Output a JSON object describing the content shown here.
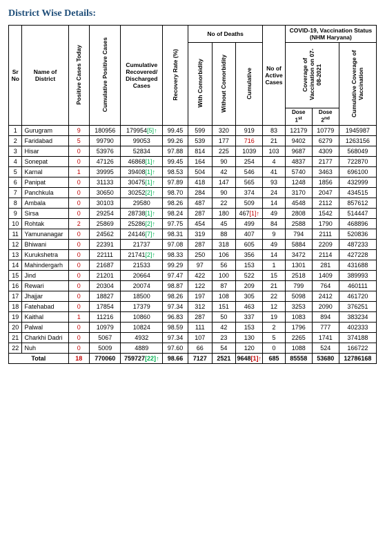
{
  "title": "District Wise Details:",
  "headers": {
    "sr": "Sr No",
    "district": "Name of District",
    "posToday": "Positive Cases Today",
    "cumPos": "Cumulative Positive Cases",
    "cumRec": "Cumulative Recovered/ Discharged Cases",
    "recRate": "Recovery Rate (%)",
    "deathsGroup": "No of Deaths",
    "withCom": "With Comorbidity",
    "withoutCom": "Without Comorbidity",
    "cumDeaths": "Cumulative",
    "active": "No of Active Cases",
    "vaccGroup": "COVID-19, Vaccination Status (NHM Haryana)",
    "coverage": "Coverage of Vaccination on 07-08-2021",
    "cumCoverage": "Cumulative Coverage of Vaccination",
    "dose1": "Dose 1st",
    "dose2": "Dose 2nd"
  },
  "rows": [
    {
      "sr": "1",
      "district": "Gurugram",
      "posToday": "9",
      "cumPos": "180956",
      "cumRec": "179954",
      "recSuffix": "[5]",
      "recRate": "99.45",
      "withCom": "599",
      "withoutCom": "320",
      "cumDeaths": "919",
      "active": "83",
      "dose1": "12179",
      "dose2": "10779",
      "cumVacc": "1945987"
    },
    {
      "sr": "2",
      "district": "Faridabad",
      "posToday": "5",
      "cumPos": "99790",
      "cumRec": "99053",
      "recRate": "99.26",
      "withCom": "539",
      "withoutCom": "177",
      "cumDeaths": "716",
      "deathRed": true,
      "active": "21",
      "dose1": "9402",
      "dose2": "6279",
      "cumVacc": "1263156"
    },
    {
      "sr": "3",
      "district": "Hisar",
      "posToday": "0",
      "cumPos": "53976",
      "cumRec": "52834",
      "recRate": "97.88",
      "withCom": "814",
      "withoutCom": "225",
      "cumDeaths": "1039",
      "active": "103",
      "dose1": "9687",
      "dose2": "4309",
      "cumVacc": "568049"
    },
    {
      "sr": "4",
      "district": "Sonepat",
      "posToday": "0",
      "cumPos": "47126",
      "cumRec": "46868",
      "recSuffix": "[1]",
      "recRate": "99.45",
      "withCom": "164",
      "withoutCom": "90",
      "cumDeaths": "254",
      "active": "4",
      "dose1": "4837",
      "dose2": "2177",
      "cumVacc": "722870"
    },
    {
      "sr": "5",
      "district": "Karnal",
      "posToday": "1",
      "cumPos": "39995",
      "cumRec": "39408",
      "recSuffix": "[1]",
      "recRate": "98.53",
      "withCom": "504",
      "withoutCom": "42",
      "cumDeaths": "546",
      "active": "41",
      "dose1": "5740",
      "dose2": "3463",
      "cumVacc": "696100"
    },
    {
      "sr": "6",
      "district": "Panipat",
      "posToday": "0",
      "cumPos": "31133",
      "cumRec": "30475",
      "recSuffix": "[1]",
      "recRate": "97.89",
      "withCom": "418",
      "withoutCom": "147",
      "cumDeaths": "565",
      "active": "93",
      "dose1": "1248",
      "dose2": "1856",
      "cumVacc": "432999"
    },
    {
      "sr": "7",
      "district": "Panchkula",
      "posToday": "0",
      "cumPos": "30650",
      "cumRec": "30252",
      "recSuffix": "[2]",
      "recRate": "98.70",
      "withCom": "284",
      "withoutCom": "90",
      "cumDeaths": "374",
      "active": "24",
      "dose1": "3170",
      "dose2": "2047",
      "cumVacc": "434515"
    },
    {
      "sr": "8",
      "district": "Ambala",
      "posToday": "0",
      "cumPos": "30103",
      "cumRec": "29580",
      "recRate": "98.26",
      "withCom": "487",
      "withoutCom": "22",
      "cumDeaths": "509",
      "active": "14",
      "dose1": "4548",
      "dose2": "2112",
      "cumVacc": "857612"
    },
    {
      "sr": "9",
      "district": "Sirsa",
      "posToday": "0",
      "cumPos": "29254",
      "cumRec": "28738",
      "recSuffix": "[1]",
      "recRate": "98.24",
      "withCom": "287",
      "withoutCom": "180",
      "cumDeaths": "467",
      "deathSuffix": "[1]",
      "deathArrowRed": true,
      "active": "49",
      "dose1": "2808",
      "dose2": "1542",
      "cumVacc": "514447"
    },
    {
      "sr": "10",
      "district": "Rohtak",
      "posToday": "2",
      "cumPos": "25869",
      "cumRec": "25286",
      "recSuffix": "[2]",
      "recRate": "97.75",
      "withCom": "454",
      "withoutCom": "45",
      "cumDeaths": "499",
      "active": "84",
      "dose1": "2588",
      "dose2": "1790",
      "cumVacc": "468896"
    },
    {
      "sr": "11",
      "district": "Yamunanagar",
      "posToday": "0",
      "cumPos": "24562",
      "cumRec": "24146",
      "recSuffix": "[7]",
      "recRate": "98.31",
      "withCom": "319",
      "withoutCom": "88",
      "cumDeaths": "407",
      "active": "9",
      "dose1": "794",
      "dose2": "2111",
      "cumVacc": "520836"
    },
    {
      "sr": "12",
      "district": "Bhiwani",
      "posToday": "0",
      "cumPos": "22391",
      "cumRec": "21737",
      "recRate": "97.08",
      "withCom": "287",
      "withoutCom": "318",
      "cumDeaths": "605",
      "active": "49",
      "dose1": "5884",
      "dose2": "2209",
      "cumVacc": "487233"
    },
    {
      "sr": "13",
      "district": "Kurukshetra",
      "posToday": "0",
      "cumPos": "22111",
      "cumRec": "21741",
      "recSuffix": "[2]",
      "recRate": "98.33",
      "withCom": "250",
      "withoutCom": "106",
      "cumDeaths": "356",
      "active": "14",
      "dose1": "3472",
      "dose2": "2114",
      "cumVacc": "427228"
    },
    {
      "sr": "14",
      "district": "Mahindergarh",
      "posToday": "0",
      "cumPos": "21687",
      "cumRec": "21533",
      "recRate": "99.29",
      "withCom": "97",
      "withoutCom": "56",
      "cumDeaths": "153",
      "active": "1",
      "dose1": "1301",
      "dose2": "281",
      "cumVacc": "431688"
    },
    {
      "sr": "15",
      "district": "Jind",
      "posToday": "0",
      "cumPos": "21201",
      "cumRec": "20664",
      "recRate": "97.47",
      "withCom": "422",
      "withoutCom": "100",
      "cumDeaths": "522",
      "active": "15",
      "dose1": "2518",
      "dose2": "1409",
      "cumVacc": "389993"
    },
    {
      "sr": "16",
      "district": "Rewari",
      "posToday": "0",
      "cumPos": "20304",
      "cumRec": "20074",
      "recRate": "98.87",
      "withCom": "122",
      "withoutCom": "87",
      "cumDeaths": "209",
      "active": "21",
      "dose1": "799",
      "dose2": "764",
      "cumVacc": "460111"
    },
    {
      "sr": "17",
      "district": "Jhajjar",
      "posToday": "0",
      "cumPos": "18827",
      "cumRec": "18500",
      "recRate": "98.26",
      "withCom": "197",
      "withoutCom": "108",
      "cumDeaths": "305",
      "active": "22",
      "dose1": "5098",
      "dose2": "2412",
      "cumVacc": "461720"
    },
    {
      "sr": "18",
      "district": "Fatehabad",
      "posToday": "0",
      "cumPos": "17854",
      "cumRec": "17379",
      "recRate": "97.34",
      "withCom": "312",
      "withoutCom": "151",
      "cumDeaths": "463",
      "active": "12",
      "dose1": "3253",
      "dose2": "2090",
      "cumVacc": "376251"
    },
    {
      "sr": "19",
      "district": "Kaithal",
      "posToday": "1",
      "cumPos": "11216",
      "cumRec": "10860",
      "recRate": "96.83",
      "withCom": "287",
      "withoutCom": "50",
      "cumDeaths": "337",
      "active": "19",
      "dose1": "1083",
      "dose2": "894",
      "cumVacc": "383234"
    },
    {
      "sr": "20",
      "district": "Palwal",
      "posToday": "0",
      "cumPos": "10979",
      "cumRec": "10824",
      "recRate": "98.59",
      "withCom": "111",
      "withoutCom": "42",
      "cumDeaths": "153",
      "active": "2",
      "dose1": "1796",
      "dose2": "777",
      "cumVacc": "402333"
    },
    {
      "sr": "21",
      "district": "Charkhi Dadri",
      "posToday": "0",
      "cumPos": "5067",
      "cumRec": "4932",
      "recRate": "97.34",
      "withCom": "107",
      "withoutCom": "23",
      "cumDeaths": "130",
      "active": "5",
      "dose1": "2265",
      "dose2": "1741",
      "cumVacc": "374188"
    },
    {
      "sr": "22",
      "district": "Nuh",
      "posToday": "0",
      "cumPos": "5009",
      "cumRec": "4889",
      "recRate": "97.60",
      "withCom": "66",
      "withoutCom": "54",
      "cumDeaths": "120",
      "active": "0",
      "dose1": "1088",
      "dose2": "524",
      "cumVacc": "166722"
    }
  ],
  "totals": {
    "label": "Total",
    "posToday": "18",
    "cumPos": "770060",
    "cumRec": "759727",
    "recSuffix": "[22]",
    "recRate": "98.66",
    "withCom": "7127",
    "withoutCom": "2521",
    "cumDeaths": "9648",
    "deathSuffix": "[1]",
    "active": "685",
    "dose1": "85558",
    "dose2": "53680",
    "cumVacc": "12786168"
  }
}
